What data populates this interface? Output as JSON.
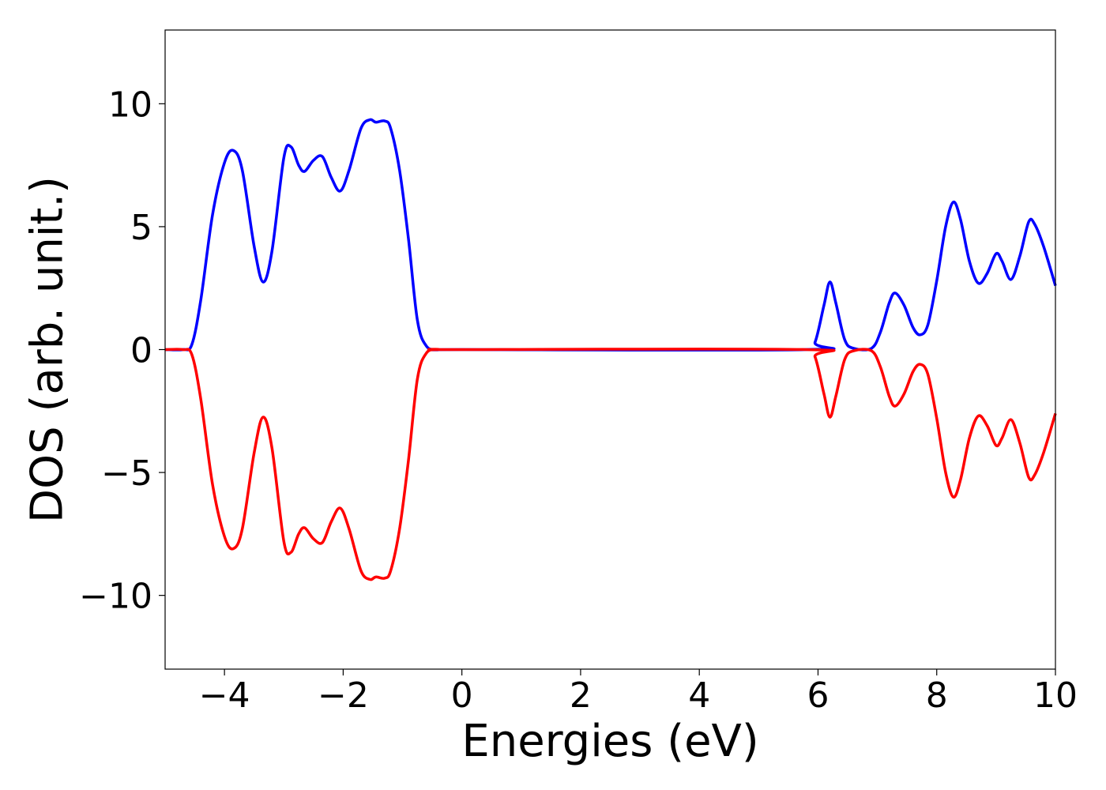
{
  "chart_data": {
    "type": "line",
    "title": "",
    "xlabel": "Energies (eV)",
    "ylabel": "DOS (arb. unit.)",
    "xlim": [
      -5,
      10
    ],
    "ylim": [
      -13,
      13
    ],
    "grid": false,
    "legend": "none",
    "x_ticks": [
      {
        "value": -4,
        "label": "−4"
      },
      {
        "value": -2,
        "label": "−2"
      },
      {
        "value": 0,
        "label": "0"
      },
      {
        "value": 2,
        "label": "2"
      },
      {
        "value": 4,
        "label": "4"
      },
      {
        "value": 6,
        "label": "6"
      },
      {
        "value": 8,
        "label": "8"
      },
      {
        "value": 10,
        "label": "10"
      }
    ],
    "y_ticks": [
      {
        "value": 10,
        "label": "10"
      },
      {
        "value": 5,
        "label": "5"
      },
      {
        "value": 0,
        "label": "0"
      },
      {
        "value": -5,
        "label": "−5"
      },
      {
        "value": -10,
        "label": "−10"
      }
    ],
    "series": [
      {
        "color": "#0000ff",
        "points": [
          [
            -5.0,
            0.0
          ],
          [
            -4.7,
            0.0
          ],
          [
            -4.55,
            0.2
          ],
          [
            -4.4,
            2.0
          ],
          [
            -4.2,
            5.5
          ],
          [
            -4.0,
            7.6
          ],
          [
            -3.85,
            8.1
          ],
          [
            -3.7,
            7.3
          ],
          [
            -3.5,
            4.2
          ],
          [
            -3.35,
            2.75
          ],
          [
            -3.2,
            4.0
          ],
          [
            -3.0,
            7.8
          ],
          [
            -2.88,
            8.25
          ],
          [
            -2.75,
            7.5
          ],
          [
            -2.65,
            7.25
          ],
          [
            -2.5,
            7.7
          ],
          [
            -2.35,
            7.85
          ],
          [
            -2.2,
            7.0
          ],
          [
            -2.05,
            6.45
          ],
          [
            -1.9,
            7.3
          ],
          [
            -1.7,
            9.0
          ],
          [
            -1.55,
            9.35
          ],
          [
            -1.45,
            9.25
          ],
          [
            -1.3,
            9.3
          ],
          [
            -1.2,
            9.0
          ],
          [
            -1.05,
            7.3
          ],
          [
            -0.9,
            4.5
          ],
          [
            -0.75,
            1.2
          ],
          [
            -0.6,
            0.15
          ],
          [
            -0.4,
            0.0
          ],
          [
            0.0,
            0.0
          ],
          [
            5.8,
            0.0
          ],
          [
            5.95,
            0.3
          ],
          [
            6.1,
            1.8
          ],
          [
            6.2,
            2.75
          ],
          [
            6.3,
            1.9
          ],
          [
            6.45,
            0.4
          ],
          [
            6.6,
            0.05
          ],
          [
            6.9,
            0.05
          ],
          [
            7.05,
            0.7
          ],
          [
            7.2,
            1.9
          ],
          [
            7.3,
            2.3
          ],
          [
            7.45,
            1.8
          ],
          [
            7.6,
            0.9
          ],
          [
            7.72,
            0.6
          ],
          [
            7.85,
            1.0
          ],
          [
            8.0,
            2.8
          ],
          [
            8.15,
            5.0
          ],
          [
            8.28,
            6.0
          ],
          [
            8.4,
            5.3
          ],
          [
            8.55,
            3.6
          ],
          [
            8.7,
            2.7
          ],
          [
            8.85,
            3.1
          ],
          [
            9.0,
            3.9
          ],
          [
            9.1,
            3.6
          ],
          [
            9.25,
            2.85
          ],
          [
            9.4,
            3.8
          ],
          [
            9.55,
            5.2
          ],
          [
            9.65,
            5.1
          ],
          [
            9.8,
            4.2
          ],
          [
            10.0,
            2.6
          ]
        ]
      },
      {
        "color": "#ff0000",
        "points": [
          [
            -5.0,
            0.0
          ],
          [
            -4.7,
            0.0
          ],
          [
            -4.55,
            -0.2
          ],
          [
            -4.4,
            -2.0
          ],
          [
            -4.2,
            -5.5
          ],
          [
            -4.0,
            -7.6
          ],
          [
            -3.85,
            -8.1
          ],
          [
            -3.7,
            -7.3
          ],
          [
            -3.5,
            -4.2
          ],
          [
            -3.35,
            -2.75
          ],
          [
            -3.2,
            -4.0
          ],
          [
            -3.0,
            -7.8
          ],
          [
            -2.88,
            -8.25
          ],
          [
            -2.75,
            -7.5
          ],
          [
            -2.65,
            -7.25
          ],
          [
            -2.5,
            -7.7
          ],
          [
            -2.35,
            -7.85
          ],
          [
            -2.2,
            -7.0
          ],
          [
            -2.05,
            -6.45
          ],
          [
            -1.9,
            -7.3
          ],
          [
            -1.7,
            -9.0
          ],
          [
            -1.55,
            -9.35
          ],
          [
            -1.45,
            -9.25
          ],
          [
            -1.3,
            -9.3
          ],
          [
            -1.2,
            -9.0
          ],
          [
            -1.05,
            -7.3
          ],
          [
            -0.9,
            -4.5
          ],
          [
            -0.75,
            -1.2
          ],
          [
            -0.6,
            -0.15
          ],
          [
            -0.4,
            0.0
          ],
          [
            0.0,
            0.0
          ],
          [
            5.8,
            0.0
          ],
          [
            5.95,
            -0.3
          ],
          [
            6.1,
            -1.8
          ],
          [
            6.2,
            -2.75
          ],
          [
            6.3,
            -1.9
          ],
          [
            6.45,
            -0.4
          ],
          [
            6.6,
            -0.05
          ],
          [
            6.9,
            -0.05
          ],
          [
            7.05,
            -0.7
          ],
          [
            7.2,
            -1.9
          ],
          [
            7.3,
            -2.3
          ],
          [
            7.45,
            -1.8
          ],
          [
            7.6,
            -0.9
          ],
          [
            7.72,
            -0.6
          ],
          [
            7.85,
            -1.0
          ],
          [
            8.0,
            -2.8
          ],
          [
            8.15,
            -5.0
          ],
          [
            8.28,
            -6.0
          ],
          [
            8.4,
            -5.3
          ],
          [
            8.55,
            -3.6
          ],
          [
            8.7,
            -2.7
          ],
          [
            8.85,
            -3.1
          ],
          [
            9.0,
            -3.9
          ],
          [
            9.1,
            -3.6
          ],
          [
            9.25,
            -2.85
          ],
          [
            9.4,
            -3.8
          ],
          [
            9.55,
            -5.2
          ],
          [
            9.65,
            -5.1
          ],
          [
            9.8,
            -4.2
          ],
          [
            10.0,
            -2.6
          ]
        ]
      }
    ]
  }
}
